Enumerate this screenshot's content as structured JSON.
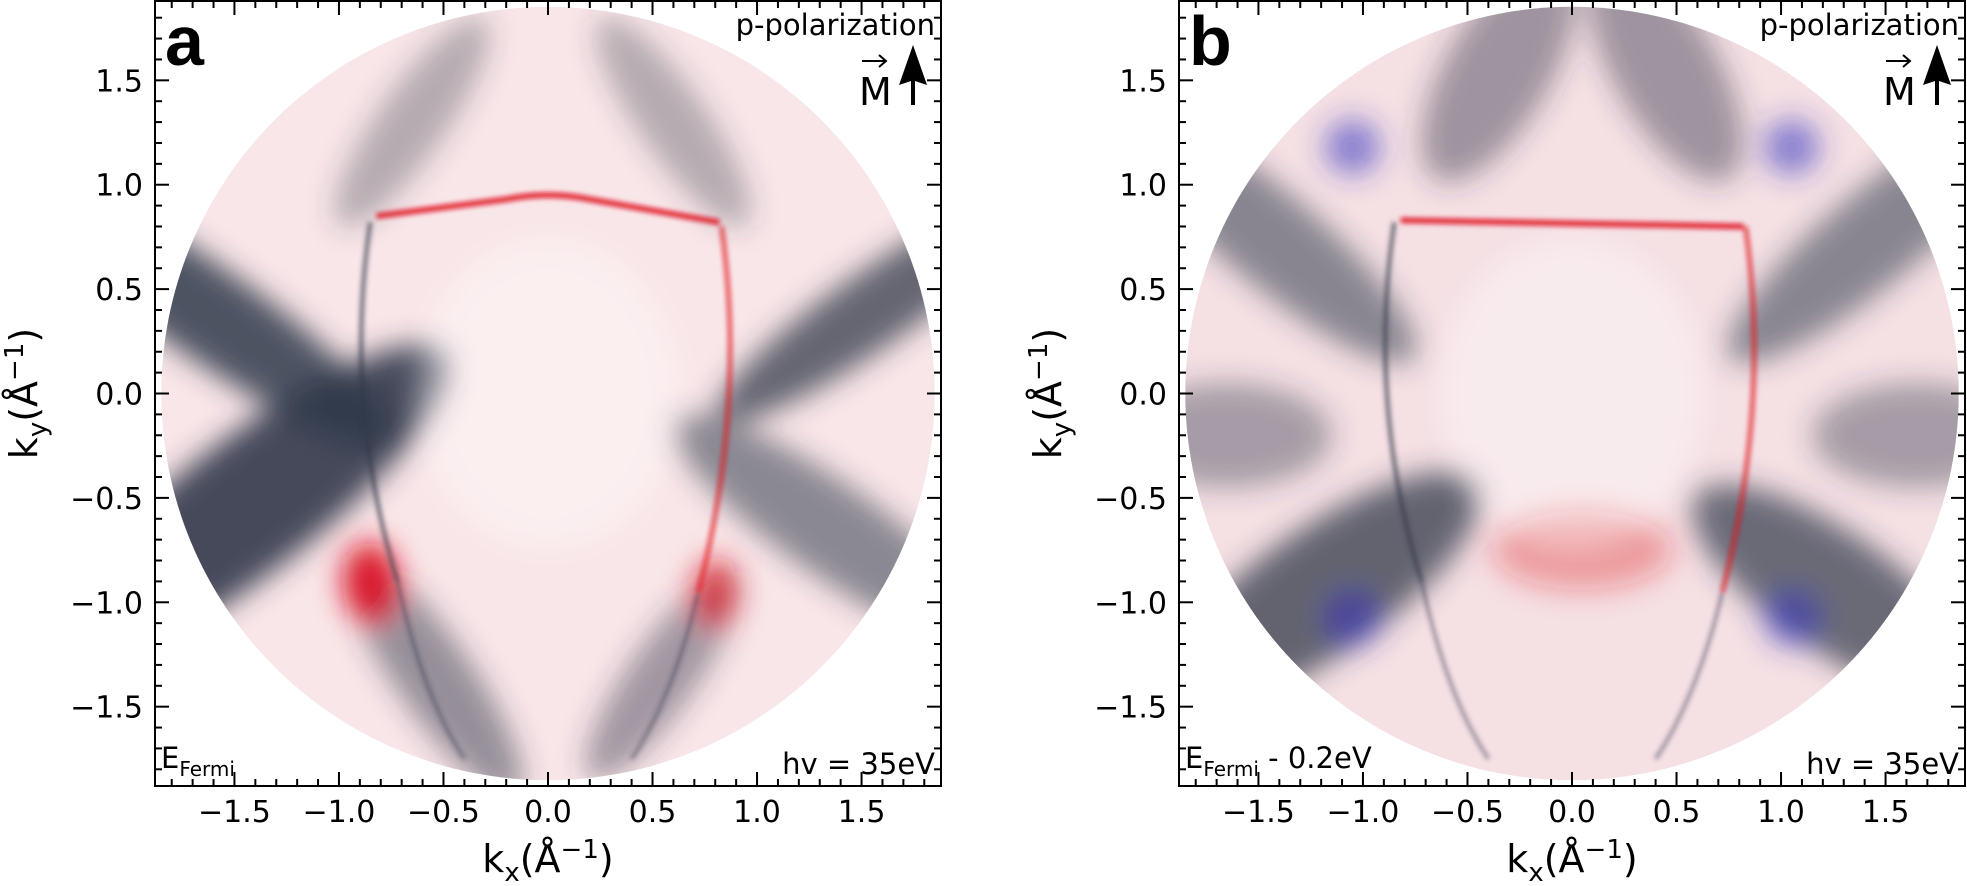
{
  "chart_data": [
    {
      "type": "heatmap",
      "panel_label": "a",
      "xlabel": {
        "base": "k",
        "sub": "x",
        "unit": "(Å",
        "sup": "−1",
        "close": ")"
      },
      "ylabel": {
        "base": "k",
        "sub": "y",
        "unit": "(Å",
        "sup": "−1",
        "close": ")"
      },
      "xlim": [
        -1.88,
        1.88
      ],
      "ylim": [
        -1.88,
        1.88
      ],
      "xticks": [
        -1.5,
        -1.0,
        -0.5,
        0.0,
        0.5,
        1.0,
        1.5
      ],
      "yticks": [
        -1.5,
        -1.0,
        -0.5,
        0.0,
        0.5,
        1.0,
        1.5
      ],
      "xtick_labels": [
        "−1.5",
        "−1.0",
        "−0.5",
        "0.0",
        "0.5",
        "1.0",
        "1.5"
      ],
      "ytick_labels": [
        "−1.5",
        "−1.0",
        "−0.5",
        "0.0",
        "0.5",
        "1.0",
        "1.5"
      ],
      "polarization": "p-polarization",
      "magnetization_label": "M",
      "energy_label": {
        "base": "E",
        "sub": "Fermi",
        "suffix": ""
      },
      "photon_energy": "hv = 35eV",
      "colormap": [
        "#3030c0",
        "#ffffff",
        "#e01020"
      ],
      "data_radius": 1.85
    },
    {
      "type": "heatmap",
      "panel_label": "b",
      "xlabel": {
        "base": "k",
        "sub": "x",
        "unit": "(Å",
        "sup": "−1",
        "close": ")"
      },
      "ylabel": {
        "base": "k",
        "sub": "y",
        "unit": "(Å",
        "sup": "−1",
        "close": ")"
      },
      "xlim": [
        -1.88,
        1.88
      ],
      "ylim": [
        -1.88,
        1.88
      ],
      "xticks": [
        -1.5,
        -1.0,
        -0.5,
        0.0,
        0.5,
        1.0,
        1.5
      ],
      "yticks": [
        -1.5,
        -1.0,
        -0.5,
        0.0,
        0.5,
        1.0,
        1.5
      ],
      "xtick_labels": [
        "−1.5",
        "−1.0",
        "−0.5",
        "0.0",
        "0.5",
        "1.0",
        "1.5"
      ],
      "ytick_labels": [
        "−1.5",
        "−1.0",
        "−0.5",
        "0.0",
        "0.5",
        "1.0",
        "1.5"
      ],
      "polarization": "p-polarization",
      "magnetization_label": "M",
      "energy_label": {
        "base": "E",
        "sub": "Fermi",
        "suffix": " - 0.2eV"
      },
      "photon_energy": "hv = 35eV",
      "colormap": [
        "#3030c0",
        "#ffffff",
        "#e01020"
      ],
      "data_radius": 1.85
    }
  ]
}
